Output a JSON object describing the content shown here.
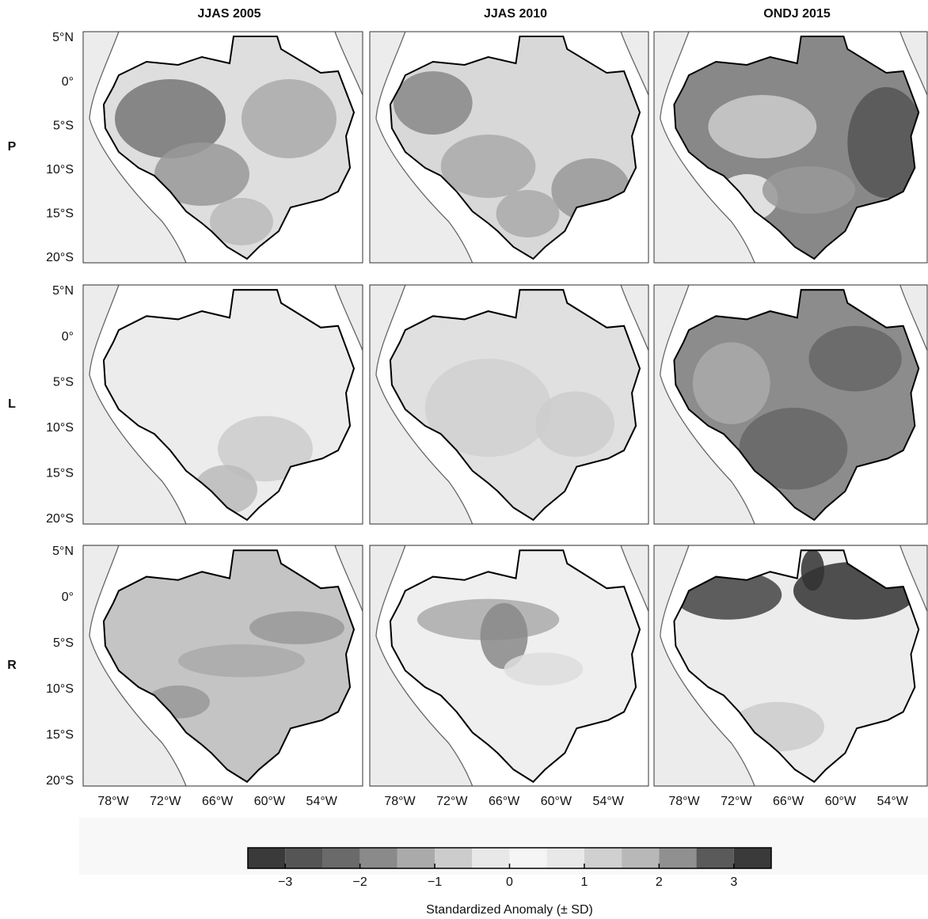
{
  "columns": [
    "JJAS 2005",
    "JJAS 2010",
    "ONDJ 2015"
  ],
  "rows": [
    "P",
    "L",
    "R"
  ],
  "lat_ticks": [
    "5°N",
    "0°",
    "5°S",
    "10°S",
    "15°S",
    "20°S"
  ],
  "lon_ticks": [
    "78°W",
    "72°W",
    "66°W",
    "60°W",
    "54°W"
  ],
  "colorbar": {
    "limits": [
      -3.5,
      3.5
    ],
    "ticks": [
      {
        "value": -3,
        "label": "−3"
      },
      {
        "value": -2,
        "label": "−2"
      },
      {
        "value": -1,
        "label": "−1"
      },
      0,
      1,
      2,
      3
    ],
    "colors": [
      "#3a3a3a",
      "#555555",
      "#6a6a6a",
      "#8a8a8a",
      "#aaaaaa",
      "#cccccc",
      "#e8e8e8",
      "#f5f5f5",
      "#e8e8e8",
      "#d0d0d0",
      "#b8b8b8",
      "#909090",
      "#5a5a5a",
      "#3a3a3a"
    ],
    "label": "Standardized Anomaly (± SD)"
  }
}
